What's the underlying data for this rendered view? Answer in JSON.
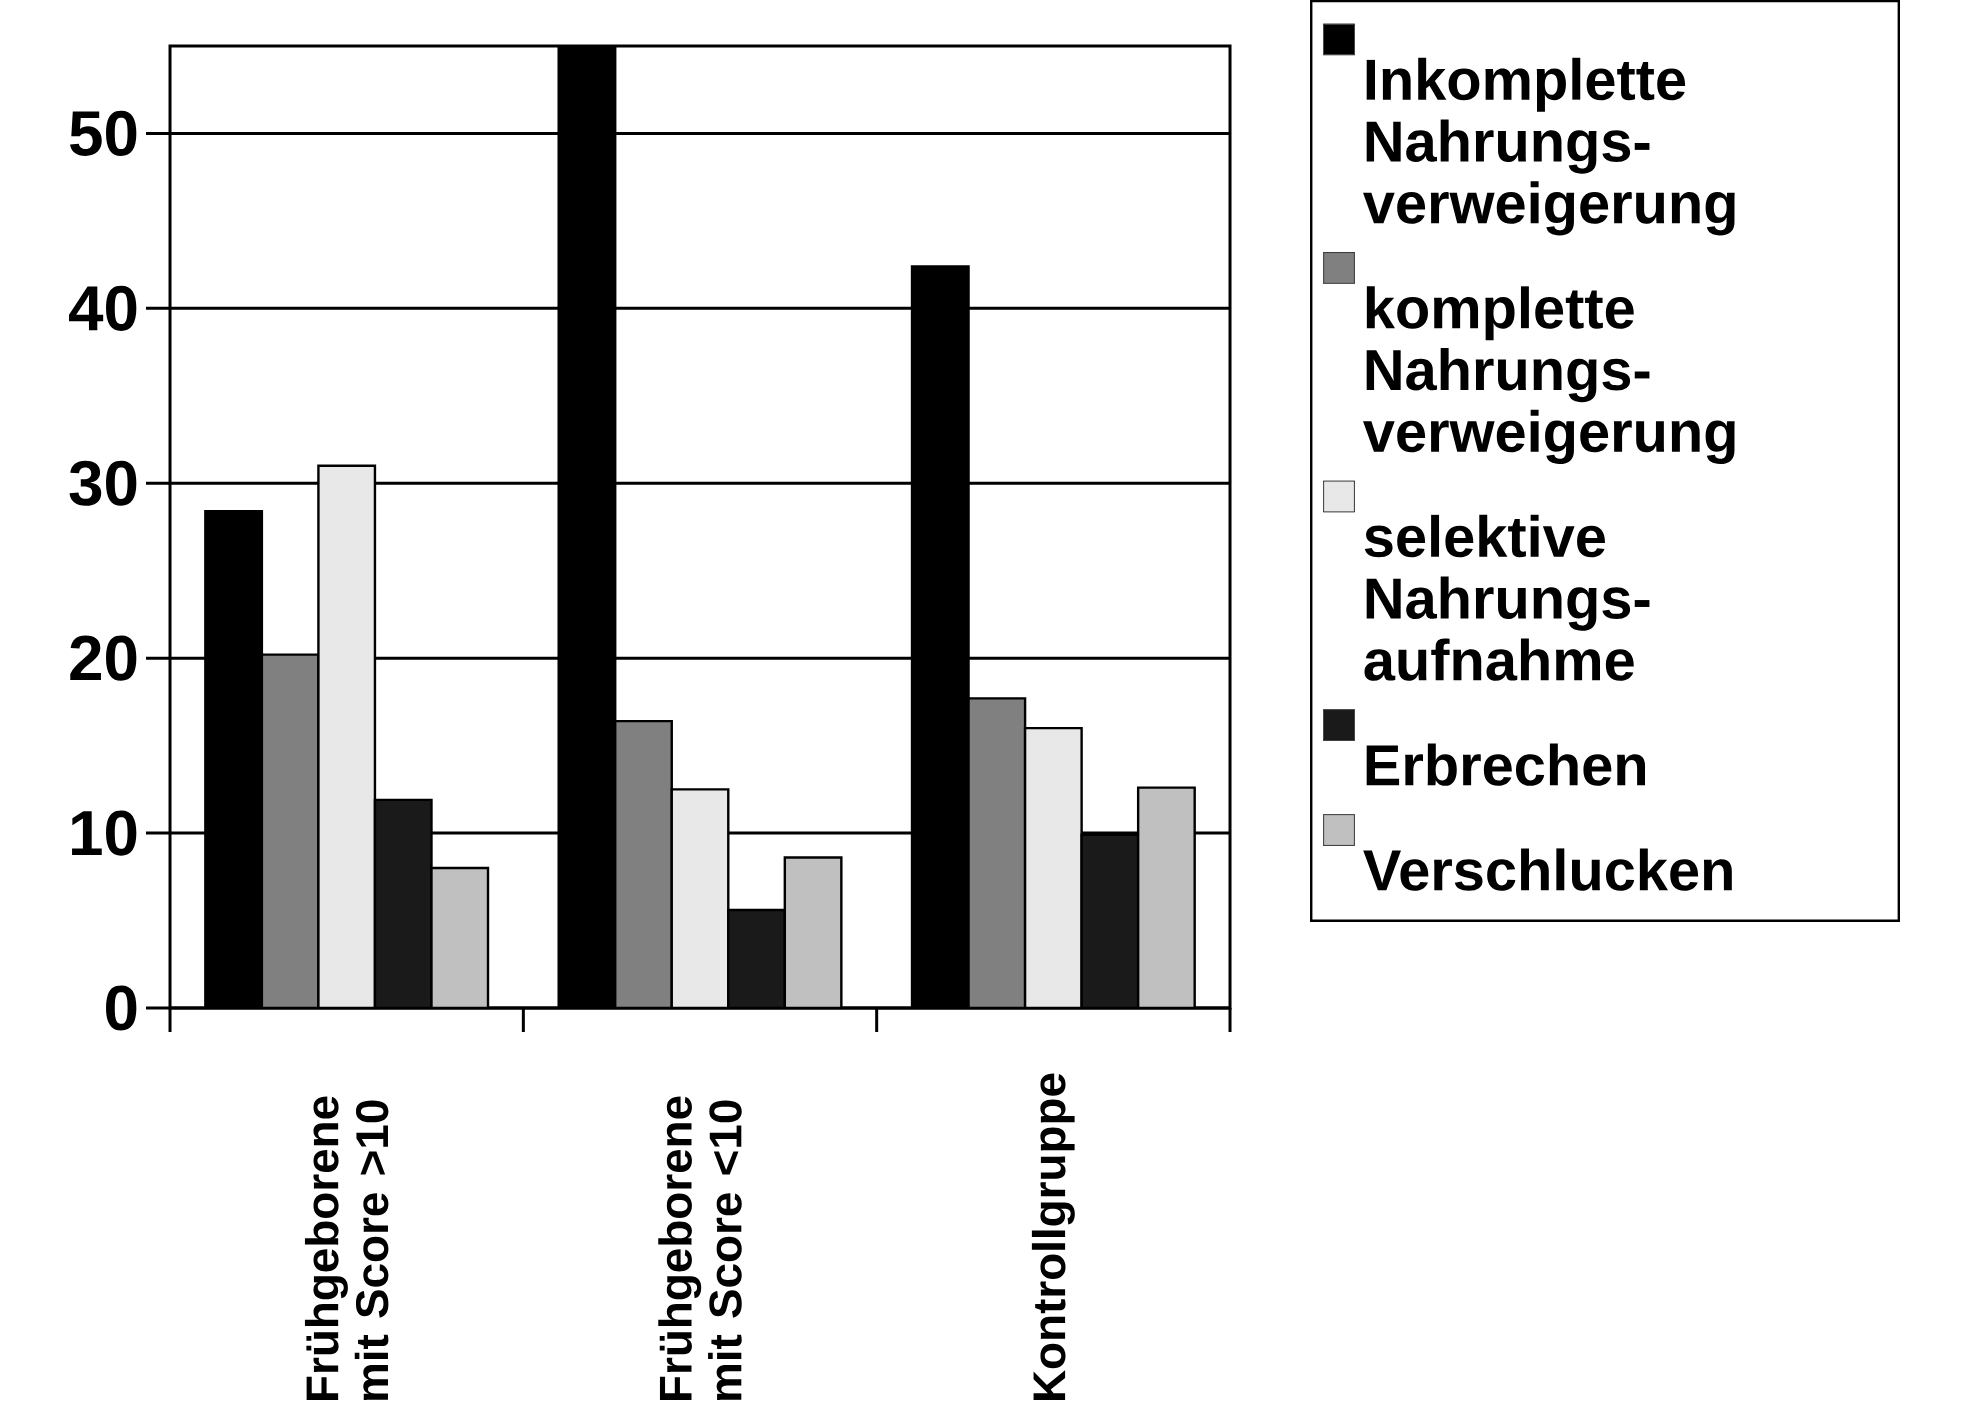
{
  "chart_data": {
    "type": "bar",
    "categories": [
      "Frühgeborene mit Score >10",
      "Frühgeborene mit Score <10",
      "Kontrollgruppe"
    ],
    "series": [
      {
        "name": "Inkomplette Nahrungs-verweigerung",
        "color": "#000000",
        "values": [
          28.4,
          55,
          42.4
        ]
      },
      {
        "name": "komplette Nahrungs-verweigerung",
        "color": "#808080",
        "values": [
          20.2,
          16.4,
          17.7
        ]
      },
      {
        "name": "selektive Nahrungs-aufnahme",
        "color": "#e8e8e8",
        "values": [
          31.0,
          12.5,
          16.0
        ]
      },
      {
        "name": "Erbrechen",
        "color": "#1a1a1a",
        "values": [
          11.9,
          5.6,
          9.9
        ]
      },
      {
        "name": "Verschlucken",
        "color": "#c0c0c0",
        "values": [
          8.0,
          8.6,
          12.6
        ]
      }
    ],
    "ylim": [
      0,
      55
    ],
    "yticks": [
      0,
      10,
      20,
      30,
      40,
      50
    ],
    "grid": "y",
    "legend": "right"
  }
}
